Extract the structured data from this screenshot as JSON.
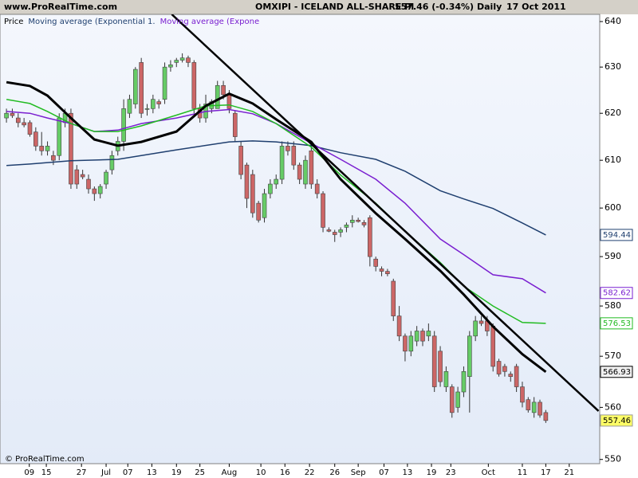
{
  "header": {
    "site": "www.ProRealTime.com",
    "title": "OMXIPI - ICELAND ALL-SHARE PI",
    "quote": "557.46 (-0.34%)",
    "period": "Daily",
    "date": "17 Oct 2011"
  },
  "footer": "© ProRealTime.com",
  "chart_data": {
    "type": "candlestick",
    "price_label": "Price",
    "log_scale": true,
    "grid": false,
    "up_color": "#66cc66",
    "down_color": "#cc6666",
    "last_color": "#ffff66",
    "xlim": [
      -1.1,
      101.2
    ],
    "ylim": [
      549.2,
      641.6
    ],
    "yticks": [
      550,
      560,
      570,
      580,
      590,
      600,
      610,
      620,
      630,
      640
    ],
    "xticks": [
      {
        "value": 3.9,
        "label": "09"
      },
      {
        "value": 6.8,
        "label": "15"
      },
      {
        "value": 12.8,
        "label": "27"
      },
      {
        "value": 17,
        "label": "Jul"
      },
      {
        "value": 20.7,
        "label": "07"
      },
      {
        "value": 24.8,
        "label": "13"
      },
      {
        "value": 29,
        "label": "19"
      },
      {
        "value": 33,
        "label": "25"
      },
      {
        "value": 38,
        "label": "Aug"
      },
      {
        "value": 43.4,
        "label": "10"
      },
      {
        "value": 47.5,
        "label": "16"
      },
      {
        "value": 51.7,
        "label": "22"
      },
      {
        "value": 56,
        "label": "26"
      },
      {
        "value": 60,
        "label": "Sep"
      },
      {
        "value": 64.4,
        "label": "07"
      },
      {
        "value": 68.4,
        "label": "13"
      },
      {
        "value": 72.5,
        "label": "19"
      },
      {
        "value": 75.8,
        "label": "23"
      },
      {
        "value": 82.2,
        "label": "Oct"
      },
      {
        "value": 88,
        "label": "11"
      },
      {
        "value": 92,
        "label": "17"
      },
      {
        "value": 96,
        "label": "21"
      }
    ],
    "ohlc": [
      [
        619,
        621,
        618,
        620
      ],
      [
        620,
        621,
        619,
        619.5
      ],
      [
        619,
        620,
        617,
        618
      ],
      [
        618,
        619,
        617,
        617.5
      ],
      [
        618,
        618.5,
        615,
        615.5
      ],
      [
        616,
        617,
        612,
        613
      ],
      [
        613,
        616,
        611,
        612
      ],
      [
        612,
        614,
        611,
        613
      ],
      [
        611,
        612,
        609,
        610
      ],
      [
        611,
        620,
        610,
        619
      ],
      [
        618,
        621,
        617,
        620
      ],
      [
        620,
        621,
        604,
        605
      ],
      [
        608,
        609,
        604,
        605
      ],
      [
        607,
        608,
        606,
        606.5
      ],
      [
        606,
        607,
        603,
        604
      ],
      [
        604,
        604.5,
        601.5,
        603
      ],
      [
        603,
        605,
        602,
        604.5
      ],
      [
        605,
        608,
        604,
        607.5
      ],
      [
        608,
        612,
        607,
        611
      ],
      [
        612,
        615,
        611,
        614
      ],
      [
        614,
        623,
        612,
        621
      ],
      [
        620,
        624,
        619,
        623
      ],
      [
        622,
        630,
        621,
        629.5
      ],
      [
        631,
        632,
        619,
        620
      ],
      [
        621,
        622,
        619.5,
        621
      ],
      [
        621,
        624,
        620,
        623
      ],
      [
        622.5,
        623,
        621,
        622
      ],
      [
        623,
        631,
        622,
        630
      ],
      [
        630,
        631.5,
        629,
        630.5
      ],
      [
        631,
        632,
        630,
        631.5
      ],
      [
        631.5,
        633,
        631,
        632
      ],
      [
        632,
        632.5,
        630,
        631
      ],
      [
        631,
        631.5,
        620,
        621
      ],
      [
        621,
        622,
        618,
        619
      ],
      [
        619,
        624,
        618,
        622
      ],
      [
        621,
        623,
        620,
        622.5
      ],
      [
        621,
        627,
        621,
        626
      ],
      [
        626,
        627,
        623,
        624
      ],
      [
        624,
        625,
        620,
        621
      ],
      [
        620,
        620.5,
        614,
        615
      ],
      [
        613,
        614,
        606,
        607
      ],
      [
        609,
        609.5,
        600,
        602
      ],
      [
        607,
        608,
        598,
        599
      ],
      [
        601,
        601.5,
        597,
        597.5
      ],
      [
        598,
        604,
        597,
        603
      ],
      [
        603,
        606,
        602,
        605
      ],
      [
        605,
        607,
        604,
        606
      ],
      [
        606,
        614,
        605,
        613
      ],
      [
        613,
        614,
        611,
        612
      ],
      [
        613,
        614,
        608,
        609
      ],
      [
        609,
        609.5,
        605,
        606
      ],
      [
        605,
        611,
        604,
        610
      ],
      [
        612,
        613,
        604,
        605
      ],
      [
        605,
        606,
        602,
        603
      ],
      [
        603,
        603.5,
        595,
        596
      ],
      [
        595.5,
        596,
        595,
        595.2
      ],
      [
        595,
        595.5,
        593,
        594.5
      ],
      [
        595,
        596,
        594,
        595.5
      ],
      [
        596,
        597,
        595,
        596.5
      ],
      [
        597,
        598.5,
        596,
        597.5
      ],
      [
        597.5,
        598,
        597,
        597.2
      ],
      [
        597,
        597.5,
        596,
        596.5
      ],
      [
        598,
        598.5,
        588,
        590
      ],
      [
        589.5,
        590,
        587,
        588
      ],
      [
        587.5,
        588,
        586,
        587
      ],
      [
        587,
        587.5,
        586,
        586.5
      ],
      [
        585,
        585.5,
        577,
        578
      ],
      [
        578,
        580,
        573,
        574
      ],
      [
        574,
        574.5,
        569,
        571
      ],
      [
        571,
        575,
        570,
        574
      ],
      [
        573,
        576,
        572,
        575
      ],
      [
        575,
        575.5,
        572,
        573
      ],
      [
        574,
        576.5,
        573,
        575
      ],
      [
        574,
        575,
        563,
        564
      ],
      [
        571,
        572,
        564,
        565
      ],
      [
        564,
        568,
        563,
        567
      ],
      [
        564,
        564.5,
        558,
        559
      ],
      [
        560,
        564,
        559,
        563
      ],
      [
        563,
        568,
        562,
        567
      ],
      [
        566,
        575,
        559,
        574
      ],
      [
        574,
        578,
        573,
        577
      ],
      [
        577,
        578,
        576,
        576.5
      ],
      [
        577,
        578,
        574,
        575
      ],
      [
        576,
        576.5,
        567,
        568
      ],
      [
        569,
        569.5,
        566,
        566.5
      ],
      [
        568,
        568.5,
        566,
        567
      ],
      [
        566.5,
        567,
        565,
        566
      ],
      [
        568,
        568.5,
        563,
        564
      ],
      [
        564,
        565,
        560,
        561
      ],
      [
        561.5,
        562,
        559,
        559.5
      ],
      [
        559,
        562,
        558,
        561
      ],
      [
        561,
        561.5,
        558,
        558.5
      ],
      [
        559,
        559.5,
        557,
        557.46
      ]
    ],
    "series": [
      {
        "name": "Moving average (Exponential 1.",
        "color": "#1f3f6f",
        "width": 1.5,
        "box_color": "#ffffff",
        "x": [
          0,
          4,
          11,
          19,
          29,
          38,
          42,
          46,
          52,
          57,
          63,
          68,
          74,
          78,
          83,
          88,
          92
        ],
        "values": [
          608.9,
          609.2,
          609.9,
          610.2,
          612.2,
          613.9,
          614.1,
          613.9,
          613.1,
          611.6,
          610.2,
          607.7,
          603.6,
          601.9,
          599.9,
          596.9,
          594.44
        ]
      },
      {
        "name": "Moving average (Expone",
        "color": "#7a1fd0",
        "width": 1.5,
        "box_color": "#ffffff",
        "x": [
          0,
          4,
          7,
          11,
          15,
          19,
          23,
          29,
          34,
          38,
          42,
          46,
          52,
          57,
          63,
          68,
          74,
          78,
          83,
          88,
          92
        ],
        "values": [
          620.4,
          620,
          619,
          617.8,
          616.1,
          616.4,
          617.8,
          619,
          620.4,
          620.8,
          619.9,
          617.8,
          613.6,
          610.2,
          606,
          601,
          593.6,
          590.4,
          586.3,
          585.5,
          582.62
        ]
      },
      {
        "color": "#22bb22",
        "width": 1.5,
        "box_color": "#ffffff",
        "x": [
          0,
          4,
          7,
          11,
          15,
          19,
          23,
          29,
          34,
          38,
          42,
          46,
          52,
          57,
          63,
          68,
          74,
          78,
          83,
          88,
          92
        ],
        "values": [
          623,
          622.1,
          620.4,
          617.8,
          616.1,
          616.1,
          617.3,
          619.6,
          621.6,
          621.8,
          620.4,
          617.8,
          612.8,
          606.9,
          601,
          595.2,
          588.8,
          584,
          580,
          576.7,
          576.53
        ]
      },
      {
        "color": "#000000",
        "width": 3,
        "box_color": "#f0f0f0",
        "x": [
          0,
          4,
          7,
          11,
          15,
          19,
          23,
          29,
          34,
          38,
          42,
          46,
          52,
          57,
          63,
          68,
          74,
          78,
          83,
          88,
          92
        ],
        "values": [
          626.7,
          625.9,
          623.8,
          619,
          614.4,
          613.1,
          613.9,
          616.1,
          621.6,
          624.2,
          622.1,
          618.7,
          613.9,
          606,
          598.9,
          593.6,
          587.1,
          582.3,
          575.9,
          570.4,
          566.93
        ]
      }
    ],
    "trendline": {
      "color": "#000000",
      "x": [
        28.2,
        101
      ],
      "values": [
        641.6,
        559.3
      ]
    }
  }
}
